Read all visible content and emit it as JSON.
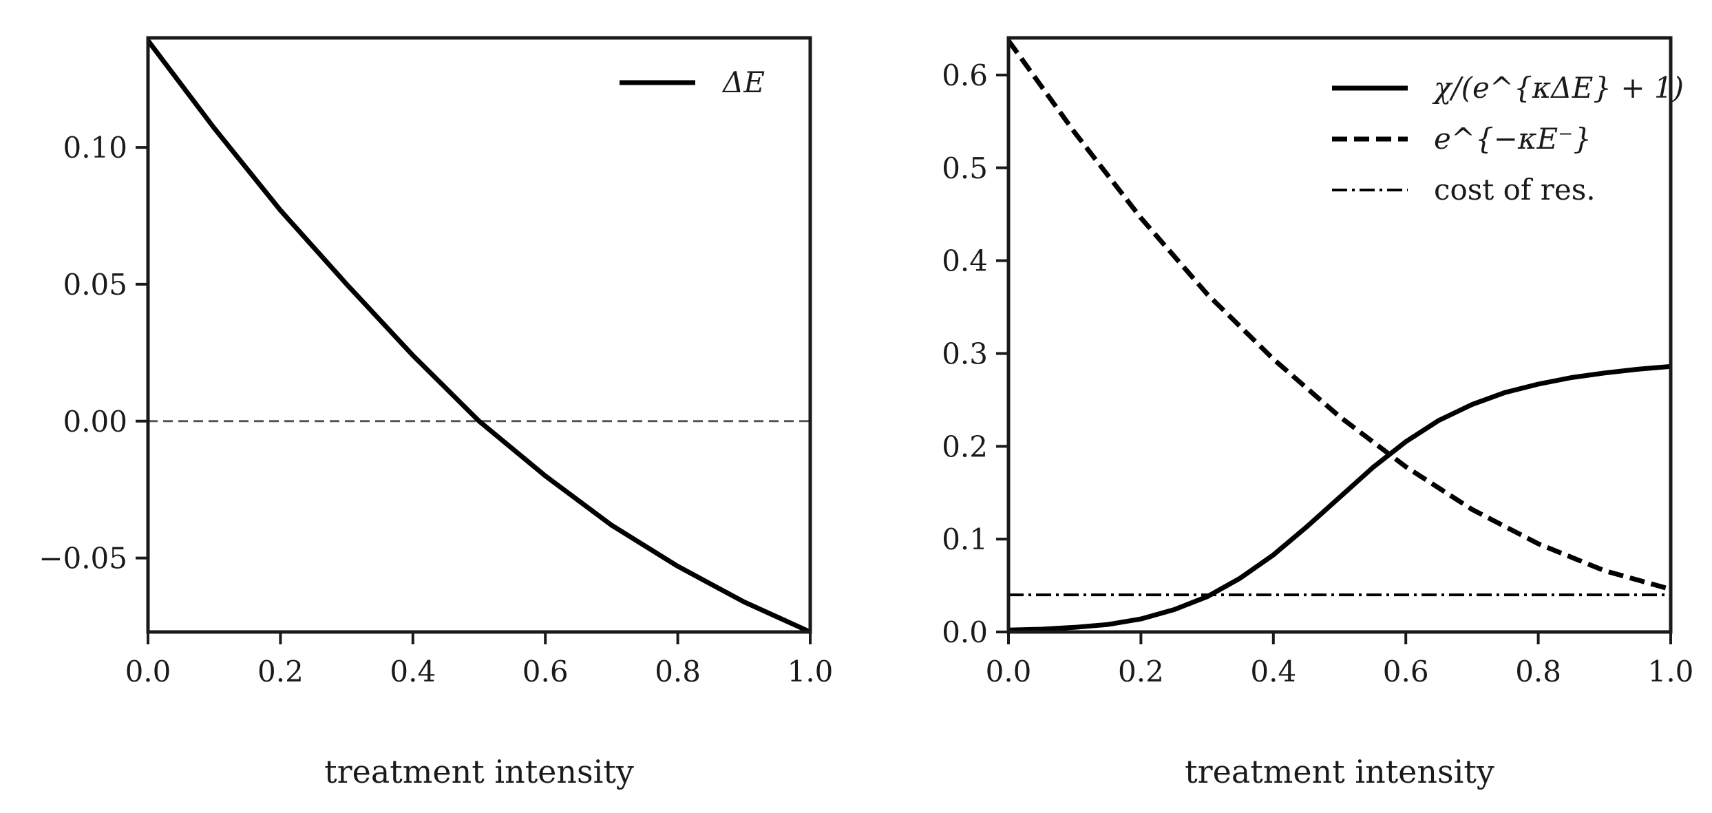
{
  "chart_data": [
    {
      "type": "line",
      "xlabel": "treatment intensity",
      "ylabel": "",
      "xlim": [
        0.0,
        1.0
      ],
      "ylim": [
        -0.077,
        0.14
      ],
      "xticks": [
        "0.0",
        "0.2",
        "0.4",
        "0.6",
        "0.8",
        "1.0"
      ],
      "yticks": [
        "−0.05",
        "0.00",
        "0.05",
        "0.10"
      ],
      "ytick_values": [
        -0.05,
        0.0,
        0.05,
        0.1
      ],
      "legend_position": "top-right",
      "reference_line": {
        "y": 0.0,
        "style": "dashed",
        "color": "#555555"
      },
      "series": [
        {
          "name": "ΔE",
          "style": "solid",
          "color": "#000000",
          "x": [
            0.0,
            0.1,
            0.2,
            0.3,
            0.4,
            0.5,
            0.6,
            0.7,
            0.8,
            0.9,
            1.0
          ],
          "y": [
            0.139,
            0.107,
            0.077,
            0.05,
            0.024,
            0.0,
            -0.02,
            -0.038,
            -0.053,
            -0.066,
            -0.077
          ]
        }
      ]
    },
    {
      "type": "line",
      "xlabel": "treatment intensity",
      "ylabel": "",
      "xlim": [
        0.0,
        1.0
      ],
      "ylim": [
        0.0,
        0.64
      ],
      "xticks": [
        "0.0",
        "0.2",
        "0.4",
        "0.6",
        "0.8",
        "1.0"
      ],
      "yticks": [
        "0.0",
        "0.1",
        "0.2",
        "0.3",
        "0.4",
        "0.5",
        "0.6"
      ],
      "ytick_values": [
        0.0,
        0.1,
        0.2,
        0.3,
        0.4,
        0.5,
        0.6
      ],
      "legend_position": "top-right",
      "series": [
        {
          "name": "χ/(e^{κΔE} + 1)",
          "style": "solid",
          "color": "#000000",
          "x": [
            0.0,
            0.05,
            0.1,
            0.15,
            0.2,
            0.25,
            0.3,
            0.35,
            0.4,
            0.45,
            0.5,
            0.55,
            0.6,
            0.65,
            0.7,
            0.75,
            0.8,
            0.85,
            0.9,
            0.95,
            1.0
          ],
          "y": [
            0.002,
            0.003,
            0.005,
            0.008,
            0.014,
            0.024,
            0.038,
            0.058,
            0.083,
            0.113,
            0.145,
            0.177,
            0.205,
            0.228,
            0.245,
            0.258,
            0.267,
            0.274,
            0.279,
            0.283,
            0.286
          ]
        },
        {
          "name": "e^{−κE⁻}",
          "style": "dashed",
          "color": "#000000",
          "x": [
            0.0,
            0.1,
            0.2,
            0.3,
            0.4,
            0.5,
            0.6,
            0.7,
            0.8,
            0.9,
            1.0
          ],
          "y": [
            0.637,
            0.538,
            0.446,
            0.364,
            0.294,
            0.232,
            0.178,
            0.132,
            0.095,
            0.066,
            0.046
          ]
        },
        {
          "name": "cost of res.",
          "style": "dashdot",
          "color": "#000000",
          "x": [
            0.0,
            1.0
          ],
          "y": [
            0.04,
            0.04
          ]
        }
      ]
    }
  ]
}
